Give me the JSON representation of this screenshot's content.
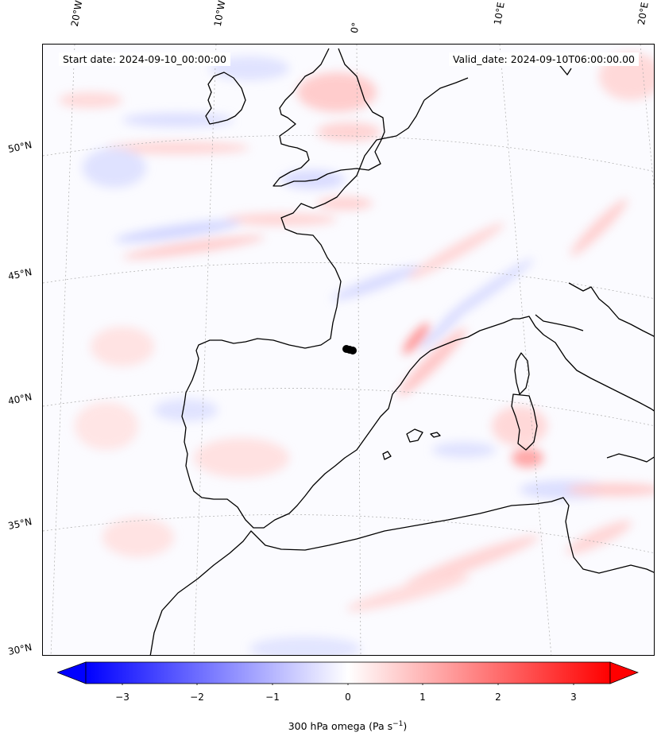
{
  "header": {
    "start_date": "Start date: 2024-09-10_00:00:00",
    "valid_date": "Valid_date: 2024-09-10T06:00:00.00"
  },
  "longitude_labels": [
    "20°W",
    "10°W",
    "0°",
    "10°E",
    "20°E"
  ],
  "latitude_labels": [
    "50°N",
    "45°N",
    "40°N",
    "35°N",
    "30°N"
  ],
  "colorbar": {
    "title": "300 hPa omega (Pa s",
    "title_sup": "−1",
    "title_end": ")",
    "ticks": [
      "−3",
      "−2",
      "−1",
      "0",
      "1",
      "2",
      "3"
    ],
    "min": -3.7,
    "max": 3.7,
    "colormap": "bwr",
    "colors": {
      "negative": "#0000ff",
      "zero": "#ffffff",
      "positive": "#ff0000"
    }
  },
  "map": {
    "projection": "Lambert conformal",
    "field": "300 hPa omega",
    "extent_lon": [
      -22,
      22
    ],
    "extent_lat": [
      30,
      54
    ],
    "coastline_color": "#000000",
    "gridline_color": "#999999",
    "marker": "black dot"
  }
}
